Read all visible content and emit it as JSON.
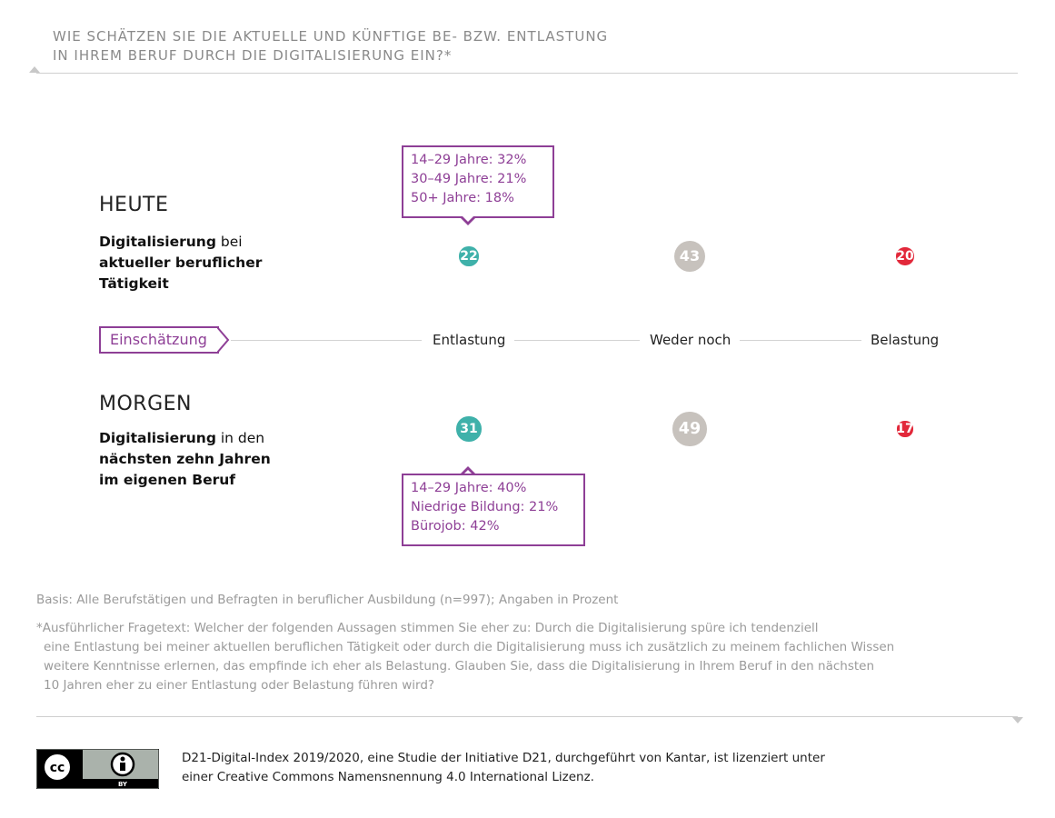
{
  "header": {
    "title_line1": "WIE SCHÄTZEN SIE DIE AKTUELLE UND KÜNFTIGE BE- BZW. ENTLASTUNG",
    "title_line2": "IN IHREM BERUF DURCH DIE DIGITALISIERUNG EIN?*"
  },
  "heute": {
    "heading": "HEUTE",
    "desc_bold1": "Digitalisierung",
    "desc_rest1": " bei",
    "desc_bold2": "aktueller beruflicher",
    "desc_bold3": "Tätigkeit",
    "callout": [
      "14–29 Jahre: 32%",
      "30–49 Jahre: 21%",
      "50+ Jahre: 18%"
    ]
  },
  "morgen": {
    "heading": "MORGEN",
    "desc_bold1": "Digitalisierung",
    "desc_rest1": " in den",
    "desc_bold2": "nächsten zehn Jahren",
    "desc_bold3": "im eigenen Beruf",
    "callout": [
      "14–29 Jahre: 40%",
      "Niedrige Bildung: 21%",
      "Bürojob: 42%"
    ]
  },
  "axis": {
    "tag_label": "Einschätzung",
    "labels": [
      "Entlastung",
      "Weder noch",
      "Belastung"
    ]
  },
  "colors": {
    "entlastung": "#3fb1aa",
    "weder": "#c7c2bd",
    "belastung": "#e2283a",
    "accent": "#8e3f96"
  },
  "chart_data": {
    "type": "bubble",
    "categories": [
      "Entlastung",
      "Weder noch",
      "Belastung"
    ],
    "series": [
      {
        "name": "HEUTE",
        "values": [
          22,
          43,
          20
        ]
      },
      {
        "name": "MORGEN",
        "values": [
          31,
          49,
          17
        ]
      }
    ],
    "unit": "Prozent"
  },
  "footnotes": {
    "basis": "Basis: Alle Berufstätigen und Befragten in beruflicher Ausbildung (n=997); Angaben in Prozent",
    "detail_line1": "*Ausführlicher Fragetext: Welcher der folgenden Aussagen stimmen Sie eher zu: Durch die Digitalisierung spüre ich tendenziell",
    "detail_line2": "eine Entlastung bei meiner aktuellen beruflichen Tätigkeit oder durch die Digitalisierung muss ich zusätzlich zu meinem fachlichen Wissen",
    "detail_line3": "weitere Kenntnisse erlernen, das empfinde ich eher als Belastung. Glauben Sie, dass die Digitalisierung in Ihrem Beruf in den nächsten",
    "detail_line4": "10 Jahren eher zu einer Entlastung oder Belastung führen wird?"
  },
  "license": {
    "line1": "D21-Digital-Index 2019/2020, eine Studie der Initiative D21, durchgeführt von Kantar, ist lizenziert unter",
    "line2": "einer Creative Commons Namensnennung 4.0 International Lizenz.",
    "badge_cc": "cc",
    "badge_by": "BY"
  }
}
